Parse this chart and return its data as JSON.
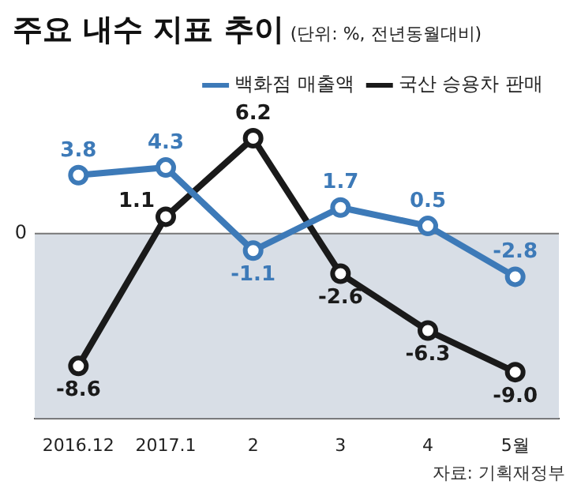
{
  "chart_data": {
    "type": "line",
    "title": "주요 내수 지표 추이",
    "subtitle": "(단위: %, 전년동월대비)",
    "annotations": [
      "자료: 기획재정부"
    ],
    "categories": [
      "2016.12",
      "2017.1",
      "2",
      "3",
      "4",
      "5월"
    ],
    "series": [
      {
        "name": "백화점 매출액",
        "color": "#3d7ab8",
        "values": [
          3.8,
          4.3,
          -1.1,
          1.7,
          0.5,
          -2.8
        ],
        "value_labels": [
          "3.8",
          "4.3",
          "-1.1",
          "1.7",
          "0.5",
          "-2.8"
        ]
      },
      {
        "name": "국산 승용차 판매",
        "color": "#1a1a1a",
        "values": [
          -8.6,
          1.1,
          6.2,
          -2.6,
          -6.3,
          -9.0
        ],
        "value_labels": [
          "-8.6",
          "1.1",
          "6.2",
          "-2.6",
          "-6.3",
          "-9.0"
        ]
      }
    ],
    "grid": false,
    "legend": "top right",
    "marker": "circle",
    "line_style": "solid",
    "ref_lines": [
      {
        "axis": "y",
        "value": 0,
        "label": "0",
        "color": "#777777"
      }
    ]
  }
}
